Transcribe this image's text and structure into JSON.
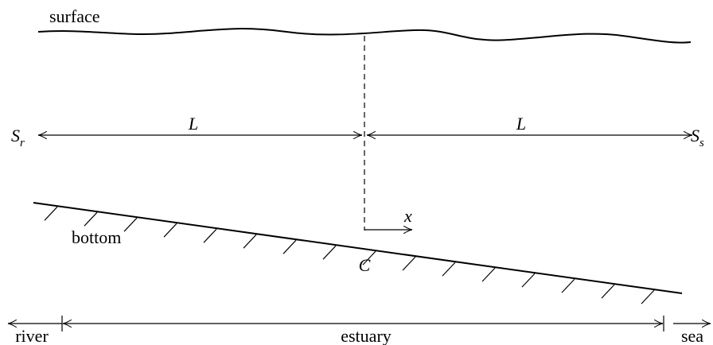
{
  "labels": {
    "surface": "surface",
    "bottom": "bottom",
    "left_length": "L",
    "right_length": "L",
    "left_end": {
      "symbol": "S",
      "subscript": "r"
    },
    "right_end": {
      "symbol": "S",
      "subscript": "s"
    },
    "axis": "x",
    "center": "C",
    "river": "river",
    "estuary": "estuary",
    "sea": "sea"
  }
}
